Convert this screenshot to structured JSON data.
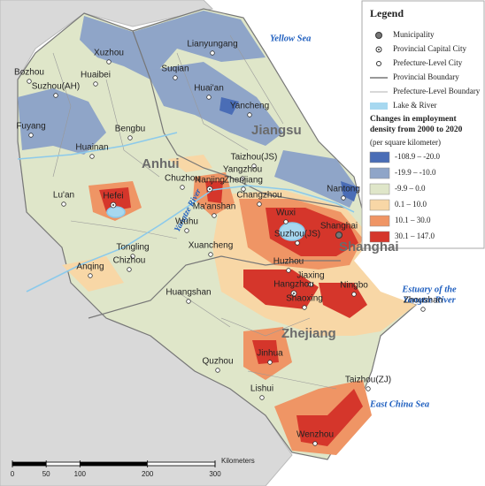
{
  "legend": {
    "title": "Legend",
    "symbols": [
      "Municipality",
      "Provincial Capital City",
      "Prefecture-Level City",
      "Provincial Boundary",
      "Prefecture-Level Boundary",
      "Lake & River"
    ],
    "classes_title": [
      "Changes in employment",
      "density from 2000 to 2020"
    ],
    "unit": "(per square kilometer)",
    "classes": [
      {
        "label": "-108.9 – -20.0",
        "color": "#4a6db6"
      },
      {
        "label": "-19.9 – -10.0",
        "color": "#8fa5c8"
      },
      {
        "label": "-9.9 – 0.0",
        "color": "#dfe6c9"
      },
      {
        "label": "0.1 – 10.0",
        "color": "#f8d7a6"
      },
      {
        "label": "10.1 – 30.0",
        "color": "#ef9565"
      },
      {
        "label": "30.1 – 147.0",
        "color": "#d5362b"
      }
    ]
  },
  "provinces": [
    "Anhui",
    "Jiangsu",
    "Shanghai",
    "Zhejiang"
  ],
  "water_labels": {
    "yellow_sea": "Yellow Sea",
    "yangtze": "Yangtze River",
    "estuary": [
      "Estuary of the",
      "Yangtze River"
    ],
    "east_china_sea": "East China Sea"
  },
  "cities": [
    "Lianyungang",
    "Xuzhou",
    "Bozhou",
    "Suqian",
    "Huaibei",
    "Suzhou(AH)",
    "Huai'an",
    "Yancheng",
    "Fuyang",
    "Bengbu",
    "Huainan",
    "Taizhou(JS)",
    "Chuzhou",
    "Yangzhou",
    "Zhenjiang",
    "Nantong",
    "Nanjing",
    "Changzhou",
    "Lu'an",
    "Hefei",
    "Ma'anshan",
    "Wuxi",
    "Shanghai",
    "Wuhu",
    "Suzhou(JS)",
    "Tongling",
    "Xuancheng",
    "Huzhou",
    "Chizhou",
    "Anqing",
    "Jiaxing",
    "Hangzhou",
    "Shaoxing",
    "Ningbo",
    "Zhoushan",
    "Huangshan",
    "Jinhua",
    "Quzhou",
    "Lishui",
    "Taizhou(ZJ)",
    "Wenzhou"
  ],
  "scale_bar": {
    "ticks": [
      0,
      50,
      100,
      200,
      300
    ],
    "unit": "Kilometers"
  }
}
